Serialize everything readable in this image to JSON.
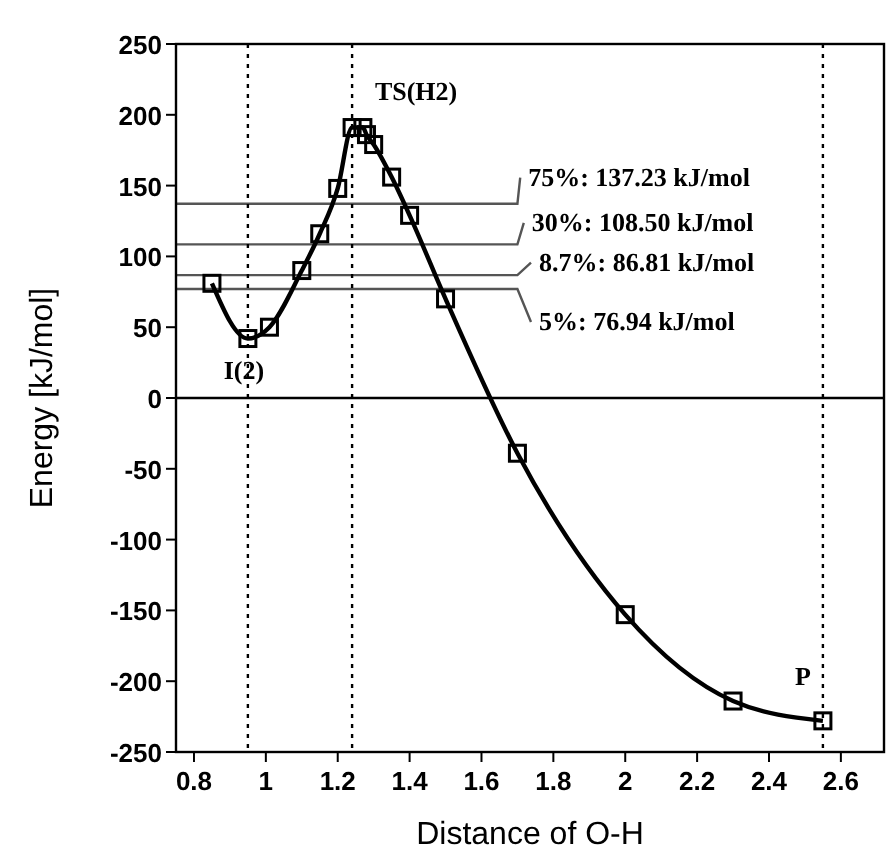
{
  "chart_data": {
    "type": "line",
    "xlabel": "Distance of O-H",
    "ylabel": "Energy [kJ/mol]",
    "x": [
      0.85,
      0.95,
      1.01,
      1.1,
      1.15,
      1.2,
      1.24,
      1.27,
      1.28,
      1.3,
      1.35,
      1.4,
      1.5,
      1.7,
      2.0,
      2.3,
      2.55
    ],
    "series": [
      {
        "color": "#000000",
        "values": [
          81,
          42,
          50,
          90,
          116,
          148,
          191,
          191,
          186,
          179,
          156,
          129,
          70,
          -39,
          -153,
          -214,
          -228
        ]
      }
    ],
    "marker": "square",
    "line_style": "solid",
    "grid": false,
    "xlim": [
      0.75,
      2.72
    ],
    "xticks": [
      0.8,
      1,
      1.2,
      1.4,
      1.6,
      1.8,
      2,
      2.2,
      2.4,
      2.6
    ],
    "ylim": [
      -250,
      250
    ],
    "yticks": [
      -250,
      -200,
      -150,
      -100,
      -50,
      0,
      50,
      100,
      150,
      200,
      250
    ],
    "ref_lines": [
      {
        "axis": "y",
        "value": 0,
        "color": "#000000",
        "line_style": "solid"
      },
      {
        "axis": "y",
        "value": 137.23,
        "label": "75%: 137.23 kJ/mol",
        "color": "#555555",
        "line_style": "solid"
      },
      {
        "axis": "y",
        "value": 108.5,
        "label": "30%: 108.50 kJ/mol",
        "color": "#555555",
        "line_style": "solid"
      },
      {
        "axis": "y",
        "value": 86.81,
        "label": "8.7%: 86.81 kJ/mol",
        "color": "#555555",
        "line_style": "solid"
      },
      {
        "axis": "y",
        "value": 76.94,
        "label": "5%: 76.94 kJ/mol",
        "color": "#555555",
        "line_style": "solid"
      },
      {
        "axis": "x",
        "value": 0.95,
        "color": "#000000",
        "line_style": "dotted"
      },
      {
        "axis": "x",
        "value": 1.24,
        "color": "#000000",
        "line_style": "dotted"
      },
      {
        "axis": "x",
        "value": 2.55,
        "color": "#000000",
        "line_style": "dotted"
      }
    ],
    "annotations": [
      {
        "text": "TS(H2)",
        "x": 1.27,
        "y": 191
      },
      {
        "text": "I(2)",
        "x": 0.95,
        "y": 42
      },
      {
        "text": "P",
        "x": 2.55,
        "y": -228
      }
    ]
  }
}
